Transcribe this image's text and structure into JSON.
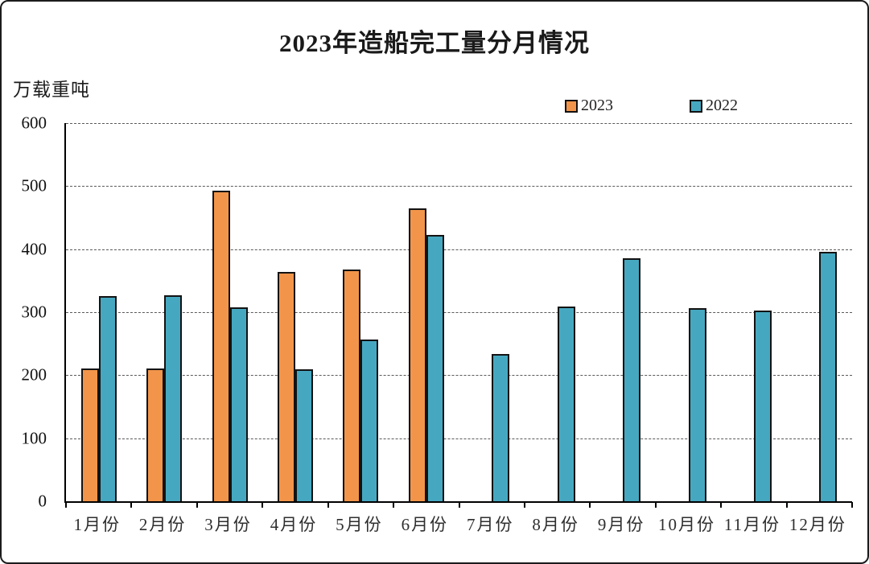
{
  "chart_data": {
    "type": "bar",
    "title": "2023年造船完工量分月情况",
    "ylabel": "万载重吨",
    "xlabel": "",
    "categories": [
      "1月份",
      "2月份",
      "3月份",
      "4月份",
      "5月份",
      "6月份",
      "7月份",
      "8月份",
      "9月份",
      "10月份",
      "11月份",
      "12月份"
    ],
    "series": [
      {
        "name": "2023",
        "color": "#F2954A",
        "values": [
          211,
          211,
          493,
          364,
          368,
          465,
          null,
          null,
          null,
          null,
          null,
          null
        ]
      },
      {
        "name": "2022",
        "color": "#46A8C0",
        "values": [
          325,
          327,
          308,
          209,
          257,
          422,
          234,
          309,
          385,
          306,
          302,
          396
        ]
      }
    ],
    "ylim": [
      0,
      600
    ],
    "yticks": [
      0,
      100,
      200,
      300,
      400,
      500,
      600
    ],
    "grid": "dashed-horizontal",
    "legend_position": "top-right-above-plot"
  },
  "colors": {
    "bar_border": "#131313",
    "axis": "#000000",
    "gridline": "#5a5a5a",
    "background": "#ffffff"
  }
}
